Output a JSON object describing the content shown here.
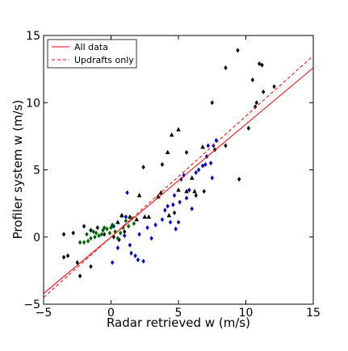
{
  "chart_data": {
    "type": "scatter",
    "title": "",
    "xlabel": "Radar retrieved w (m/s)",
    "ylabel": "Profiler system w (m/s)",
    "xlim": [
      -5,
      15
    ],
    "ylim": [
      -5,
      15
    ],
    "xticks": [
      -5,
      0,
      5,
      10,
      15
    ],
    "yticks": [
      -5,
      0,
      5,
      10,
      15
    ],
    "xtick_labels": [
      "−5",
      "0",
      "5",
      "10",
      "15"
    ],
    "ytick_labels": [
      "−5",
      "0",
      "5",
      "10",
      "15"
    ],
    "grid": false,
    "legend": {
      "placement": "top-left",
      "entries": [
        {
          "label": "All data",
          "color": "#ff0000",
          "style": "solid"
        },
        {
          "label": "Updrafts only",
          "color": "#ff0000",
          "style": "dashed"
        }
      ]
    },
    "lines": [
      {
        "label": "All data",
        "style": "solid",
        "color": "#ff0000",
        "slope": 0.84,
        "intercept": 0.0
      },
      {
        "label": "Updrafts only",
        "style": "dashed",
        "color": "#ff0000",
        "slope": 0.9,
        "intercept": 0.0
      }
    ],
    "series": [
      {
        "marker": "diamond",
        "color": "#000000",
        "points": [
          [
            -3.5,
            0.2
          ],
          [
            -3.2,
            -1.4
          ],
          [
            -3.5,
            -1.5
          ],
          [
            -2.8,
            0.3
          ],
          [
            -2.5,
            -1.9
          ],
          [
            -2.3,
            -2.9
          ],
          [
            -2.0,
            0.8
          ],
          [
            -1.5,
            0.5
          ],
          [
            -1.5,
            -2.2
          ],
          [
            -1.0,
            0.7
          ],
          [
            -0.5,
            0.2
          ],
          [
            0.2,
            0.0
          ],
          [
            0.6,
            -0.2
          ],
          [
            1.0,
            0.4
          ],
          [
            2.4,
            5.2
          ],
          [
            3.8,
            5.4
          ],
          [
            4.7,
            1.8
          ],
          [
            5.6,
            6.3
          ],
          [
            6.3,
            3.1
          ],
          [
            6.9,
            3.4
          ],
          [
            7.5,
            10.0
          ],
          [
            7.7,
            6.5
          ],
          [
            8.5,
            6.8
          ],
          [
            8.5,
            12.6
          ],
          [
            9.4,
            13.9
          ],
          [
            9.5,
            4.3
          ],
          [
            10.2,
            8.1
          ],
          [
            10.5,
            11.7
          ],
          [
            10.7,
            9.7
          ],
          [
            10.8,
            10.0
          ],
          [
            11.0,
            12.9
          ],
          [
            11.2,
            12.8
          ],
          [
            11.3,
            10.8
          ],
          [
            12.1,
            11.2
          ]
        ]
      },
      {
        "marker": "diamond",
        "color": "#0000cc",
        "points": [
          [
            0.1,
            -1.9
          ],
          [
            0.2,
            0.8
          ],
          [
            0.5,
            -0.8
          ],
          [
            0.8,
            1.6
          ],
          [
            1.0,
            0.1
          ],
          [
            1.1,
            1.5
          ],
          [
            1.2,
            3.3
          ],
          [
            1.4,
            -0.6
          ],
          [
            1.5,
            -1.2
          ],
          [
            1.8,
            -1.4
          ],
          [
            2.0,
            -1.7
          ],
          [
            2.1,
            0.2
          ],
          [
            2.4,
            -1.8
          ],
          [
            2.7,
            0.7
          ],
          [
            3.0,
            -0.1
          ],
          [
            3.3,
            0.9
          ],
          [
            3.8,
            1.3
          ],
          [
            4.0,
            2.0
          ],
          [
            4.2,
            2.3
          ],
          [
            4.4,
            1.1
          ],
          [
            4.6,
            2.4
          ],
          [
            4.7,
            3.1
          ],
          [
            4.8,
            0.6
          ],
          [
            5.0,
            1.1
          ],
          [
            5.1,
            2.6
          ],
          [
            5.2,
            4.3
          ],
          [
            5.4,
            4.6
          ],
          [
            5.6,
            2.9
          ],
          [
            5.8,
            3.5
          ],
          [
            6.0,
            2.1
          ],
          [
            6.3,
            4.8
          ],
          [
            6.5,
            5.0
          ],
          [
            6.8,
            5.3
          ],
          [
            7.0,
            5.4
          ],
          [
            7.1,
            6.0
          ],
          [
            7.2,
            6.8
          ],
          [
            7.4,
            5.5
          ],
          [
            7.5,
            4.4
          ],
          [
            7.6,
            6.8
          ],
          [
            7.8,
            7.2
          ]
        ]
      },
      {
        "marker": "triangle",
        "color": "#000000",
        "points": [
          [
            0.5,
            1.1
          ],
          [
            0.8,
            1.6
          ],
          [
            1.4,
            1.5
          ],
          [
            1.9,
            1.3
          ],
          [
            2.1,
            3.1
          ],
          [
            2.5,
            1.5
          ],
          [
            2.8,
            1.5
          ],
          [
            3.5,
            3.0
          ],
          [
            3.7,
            3.3
          ],
          [
            4.2,
            6.3
          ],
          [
            4.3,
            1.6
          ],
          [
            4.5,
            7.6
          ],
          [
            5.0,
            8.0
          ],
          [
            5.0,
            3.5
          ],
          [
            5.6,
            3.4
          ],
          [
            6.0,
            4.4
          ],
          [
            6.2,
            3.4
          ],
          [
            6.8,
            6.7
          ]
        ]
      },
      {
        "marker": "diamond",
        "color": "#006400",
        "points": [
          [
            -2.3,
            -0.4
          ],
          [
            -2.0,
            -0.4
          ],
          [
            -1.8,
            0.2
          ],
          [
            -1.5,
            -0.1
          ],
          [
            -1.3,
            0.4
          ],
          [
            -1.1,
            0.3
          ],
          [
            -0.9,
            0.1
          ],
          [
            -0.7,
            0.2
          ],
          [
            -0.5,
            0.7
          ],
          [
            -0.3,
            0.6
          ],
          [
            -0.1,
            0.3
          ],
          [
            0.1,
            0.9
          ],
          [
            0.3,
            0.4
          ],
          [
            0.5,
            -0.1
          ],
          [
            0.7,
            0.3
          ],
          [
            0.9,
            0.7
          ],
          [
            1.1,
            1.2
          ],
          [
            1.3,
            0.8
          ],
          [
            1.5,
            1.4
          ],
          [
            1.7,
            1.0
          ],
          [
            -1.7,
            -0.3
          ],
          [
            -1.2,
            0.0
          ],
          [
            -0.6,
            0.5
          ],
          [
            0.0,
            0.7
          ]
        ]
      }
    ]
  }
}
